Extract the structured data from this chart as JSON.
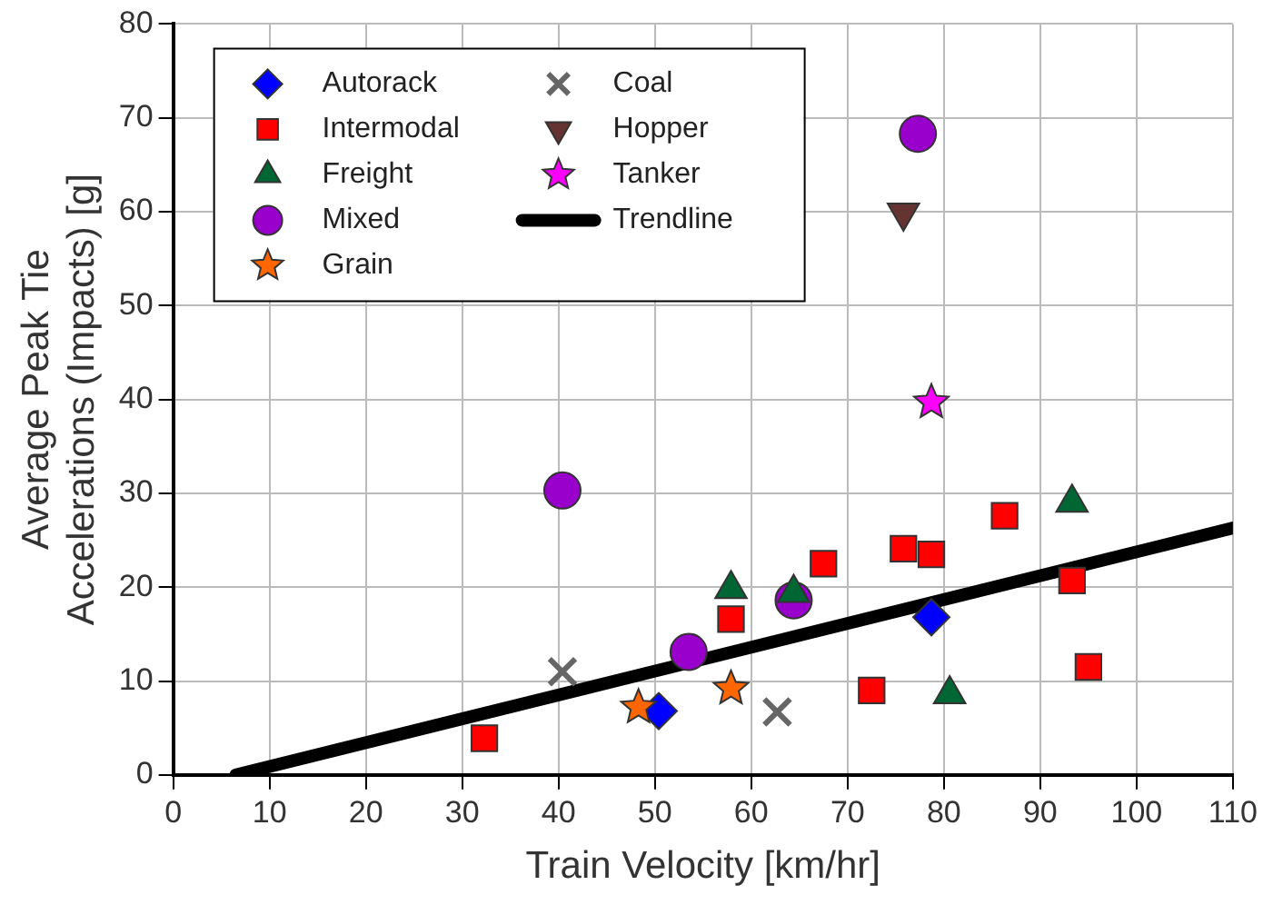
{
  "chart_data": {
    "type": "scatter",
    "xlabel": "Train Velocity [km/hr]",
    "ylabel": "Average Peak Tie\nAccelerations (Impacts) [g]",
    "xlim": [
      0,
      110
    ],
    "xticks": [
      0,
      10,
      20,
      30,
      40,
      50,
      60,
      70,
      80,
      90,
      100,
      110
    ],
    "ylim": [
      0,
      80
    ],
    "yticks": [
      0,
      10,
      20,
      30,
      40,
      50,
      60,
      70,
      80
    ],
    "grid": true,
    "legend": "top left",
    "series": [
      {
        "name": "Autorack",
        "color": "#0000ff",
        "marker": "diamond",
        "x": [
          50.4,
          78.7
        ],
        "values": [
          6.8,
          16.8
        ]
      },
      {
        "name": "Intermodal",
        "color": "#ff0000",
        "marker": "square",
        "x": [
          32.3,
          57.9,
          67.5,
          72.5,
          75.8,
          78.7,
          86.3,
          93.3,
          95
        ],
        "values": [
          3.9,
          16.6,
          22.5,
          9,
          24.1,
          23.5,
          27.6,
          20.7,
          11.5
        ]
      },
      {
        "name": "Freight",
        "color": "#006633",
        "marker": "triangle",
        "x": [
          57.9,
          64.4,
          80.6,
          93.3
        ],
        "values": [
          19.8,
          19.4,
          8.6,
          29
        ]
      },
      {
        "name": "Mixed",
        "color": "#9900cc",
        "marker": "circle",
        "x": [
          40.4,
          53.5,
          64.4,
          77.3
        ],
        "values": [
          30.3,
          13.1,
          18.6,
          68.3
        ]
      },
      {
        "name": "Grain",
        "color": "#ff6600",
        "marker": "star",
        "x": [
          48.3,
          57.9
        ],
        "values": [
          7.2,
          9.2
        ]
      },
      {
        "name": "Coal",
        "color": "#666666",
        "marker": "cross",
        "x": [
          40.4,
          62.7
        ],
        "values": [
          11,
          6.7
        ]
      },
      {
        "name": "Hopper",
        "color": "#663333",
        "marker": "triangle-down",
        "x": [
          75.8
        ],
        "values": [
          59.9
        ]
      },
      {
        "name": "Tanker",
        "color": "#ff00ff",
        "marker": "star",
        "x": [
          78.7
        ],
        "values": [
          39.7
        ]
      },
      {
        "name": "Trendline",
        "type": "line",
        "color": "#000000",
        "marker": "none",
        "x": [
          6.5,
          110
        ],
        "values": [
          0,
          26.3
        ]
      }
    ]
  }
}
